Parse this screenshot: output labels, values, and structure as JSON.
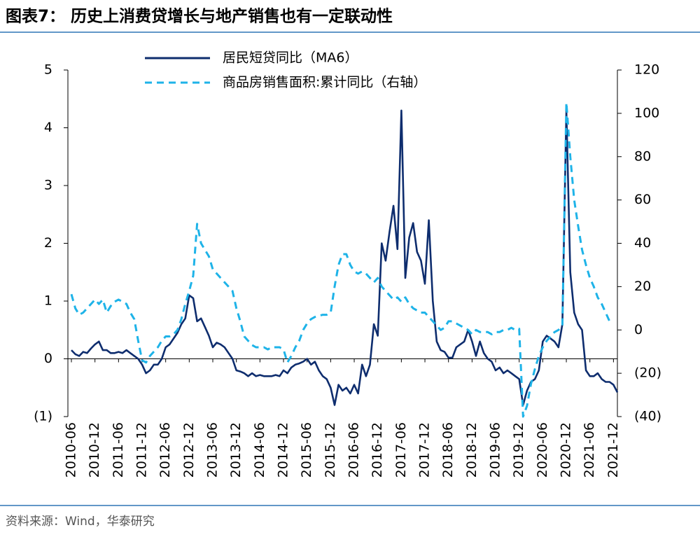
{
  "chart_data": {
    "type": "line",
    "title": "图表7： 历史上消费贷增长与地产销售也有一定联动性",
    "source": "资料来源：Wind，华泰研究",
    "categories": [
      "2010-06",
      null,
      null,
      null,
      null,
      null,
      "2010-12",
      null,
      null,
      null,
      null,
      null,
      "2011-06",
      null,
      null,
      null,
      null,
      null,
      "2011-12",
      null,
      null,
      null,
      null,
      null,
      "2012-06",
      null,
      null,
      null,
      null,
      null,
      "2012-12",
      null,
      null,
      null,
      null,
      null,
      "2013-06",
      null,
      null,
      null,
      null,
      null,
      "2013-12",
      null,
      null,
      null,
      null,
      null,
      "2014-06",
      null,
      null,
      null,
      null,
      null,
      "2014-12",
      null,
      null,
      null,
      null,
      null,
      "2015-06",
      null,
      null,
      null,
      null,
      null,
      "2015-12",
      null,
      null,
      null,
      null,
      null,
      "2016-06",
      null,
      null,
      null,
      null,
      null,
      "2016-12",
      null,
      null,
      null,
      null,
      null,
      "2017-06",
      null,
      null,
      null,
      null,
      null,
      "2017-12",
      null,
      null,
      null,
      null,
      null,
      "2018-06",
      null,
      null,
      null,
      null,
      null,
      "2018-12",
      null,
      null,
      null,
      null,
      null,
      "2019-06",
      null,
      null,
      null,
      null,
      null,
      "2019-12",
      null,
      null,
      null,
      null,
      null,
      "2020-06",
      null,
      null,
      null,
      null,
      null,
      "2020-12",
      null,
      null,
      null,
      null,
      null,
      "2021-06",
      null,
      null,
      null,
      null,
      null,
      "2021-12",
      null
    ],
    "series": [
      {
        "name": "居民短贷同比（MA6）",
        "color": "#0e2d6e",
        "dash": false,
        "values": [
          0.15,
          0.08,
          0.05,
          0.12,
          0.1,
          0.18,
          0.25,
          0.3,
          0.15,
          0.15,
          0.1,
          0.1,
          0.12,
          0.1,
          0.15,
          0.1,
          0.05,
          0,
          -0.1,
          -0.25,
          -0.2,
          -0.1,
          -0.1,
          0,
          0.2,
          0.25,
          0.35,
          0.45,
          0.6,
          0.7,
          1.1,
          1.05,
          0.65,
          0.7,
          0.55,
          0.4,
          0.2,
          0.28,
          0.25,
          0.2,
          0.1,
          0,
          -0.2,
          -0.22,
          -0.25,
          -0.3,
          -0.25,
          -0.3,
          -0.28,
          -0.3,
          -0.3,
          -0.3,
          -0.28,
          -0.3,
          -0.2,
          -0.25,
          -0.15,
          -0.1,
          -0.08,
          -0.05,
          0,
          -0.1,
          -0.05,
          -0.2,
          -0.3,
          -0.35,
          -0.5,
          -0.8,
          -0.45,
          -0.55,
          -0.5,
          -0.6,
          -0.45,
          -0.6,
          -0.1,
          -0.3,
          -0.1,
          0.6,
          0.4,
          2.0,
          1.7,
          2.2,
          2.65,
          1.9,
          4.3,
          1.4,
          2.1,
          2.35,
          1.85,
          1.7,
          1.3,
          2.4,
          1.0,
          0.3,
          0.15,
          0.12,
          0.02,
          0.02,
          0.2,
          0.25,
          0.3,
          0.5,
          0.3,
          0.05,
          0.3,
          0.1,
          0,
          -0.05,
          -0.2,
          -0.15,
          -0.25,
          -0.2,
          -0.25,
          -0.3,
          -0.35,
          -0.8,
          -0.55,
          -0.4,
          -0.35,
          -0.2,
          0.3,
          0.4,
          0.35,
          0.3,
          0.2,
          0.6,
          4.3,
          1.5,
          0.8,
          0.6,
          0.5,
          -0.2,
          -0.3,
          -0.3,
          -0.25,
          -0.35,
          -0.4,
          -0.4,
          -0.45,
          -0.58
        ]
      },
      {
        "name": "商品房销售面积:累计同比（右轴）",
        "color": "#1eb3e8",
        "dash": true,
        "axis": "y2",
        "values": [
          16.5,
          10,
          7,
          8,
          10,
          12,
          14,
          12,
          14,
          8,
          11,
          13,
          14,
          13,
          12,
          8,
          5,
          -5,
          -14,
          -15,
          -12,
          -10,
          -8,
          -5,
          -3,
          -3,
          -2,
          0,
          5,
          12,
          18,
          25,
          49,
          40,
          37,
          34,
          28,
          26,
          24,
          22,
          20,
          18,
          10,
          4,
          -3,
          -5,
          -7,
          -8,
          -8,
          -8,
          -9,
          -8,
          -8,
          -8,
          -9,
          -15,
          -12,
          -8,
          -5,
          0,
          3,
          5,
          6,
          6.5,
          7,
          7,
          8,
          20,
          30,
          35,
          35,
          30,
          27,
          26,
          27,
          26,
          24,
          22,
          24,
          20,
          18,
          16,
          14,
          15,
          13,
          15,
          12,
          10,
          9,
          8,
          8,
          6,
          4,
          2,
          0,
          1,
          4,
          4,
          3,
          2,
          1,
          0,
          -2,
          0,
          -1,
          -1,
          -1,
          -2,
          -1,
          -1,
          0,
          0,
          1,
          0,
          0.5,
          -40,
          -35,
          -25,
          -18,
          -12,
          -8,
          -5,
          -3,
          -1,
          0,
          2,
          105,
          80,
          60,
          48,
          37,
          30,
          24,
          20,
          15,
          12,
          8,
          4,
          null,
          null
        ]
      }
    ],
    "ylim": [
      -1,
      5
    ],
    "yticks": [
      {
        "value": -1,
        "label": "(1)"
      },
      0,
      1,
      2,
      3,
      4,
      5
    ],
    "y2lim": [
      -40,
      120
    ],
    "y2ticks": [
      {
        "value": -40,
        "label": "(40)"
      },
      {
        "value": -20,
        "label": "(20)"
      },
      0,
      20,
      40,
      60,
      80,
      100,
      120
    ],
    "legend": "top"
  }
}
